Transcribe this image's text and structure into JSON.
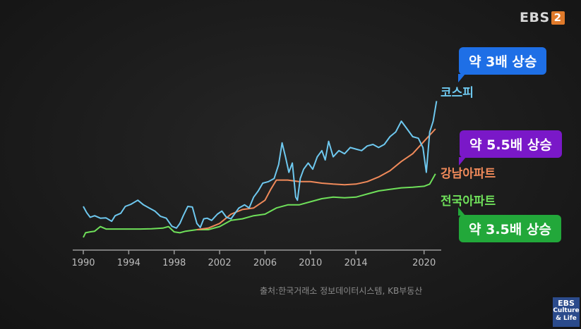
{
  "broadcaster": {
    "logo_text": "EBS",
    "logo_num": "2"
  },
  "corner_badge": {
    "line1": "EBS",
    "line2": "Culture",
    "line3": "& Life"
  },
  "source_text": "출처:한국거래소 정보데이터시스템, KB부동산",
  "callouts": {
    "kospi": "약 3배 상승",
    "gangnam": "약 5.5배 상승",
    "national": "약 3.5배 상승"
  },
  "colors": {
    "kospi": "#6ec8ef",
    "gangnam": "#f08a5a",
    "national": "#6fe05a",
    "axis": "#9a9a9a",
    "tick_text": "#bdbdbd"
  },
  "chart_data": {
    "type": "line",
    "title": "",
    "xlabel": "",
    "ylabel": "",
    "xlim": [
      1990,
      2021.2
    ],
    "ylim": [
      0,
      5.5
    ],
    "x_ticks": [
      "1990",
      "1994",
      "1998",
      "2002",
      "2006",
      "2010",
      "2014",
      "2020"
    ],
    "x_tick_values": [
      1990,
      1994,
      1998,
      2002,
      2006,
      2010,
      2014,
      2020
    ],
    "grid": false,
    "series": [
      {
        "name": "코스피",
        "x": [
          1990.0,
          1990.3,
          1990.6,
          1991.0,
          1991.5,
          1992.0,
          1992.5,
          1992.8,
          1993.3,
          1993.7,
          1994.2,
          1994.8,
          1995.3,
          1995.8,
          1996.3,
          1996.8,
          1997.3,
          1997.8,
          1998.2,
          1998.5,
          1998.8,
          1999.2,
          1999.6,
          2000.0,
          2000.3,
          2000.6,
          2000.9,
          2001.3,
          2001.8,
          2002.2,
          2002.6,
          2003.0,
          2003.3,
          2003.7,
          2004.2,
          2004.6,
          2005.0,
          2005.4,
          2005.8,
          2006.3,
          2006.8,
          2007.2,
          2007.5,
          2007.8,
          2008.1,
          2008.4,
          2008.7,
          2008.85,
          2009.1,
          2009.4,
          2009.8,
          2010.2,
          2010.6,
          2011.0,
          2011.3,
          2011.6,
          2012.0,
          2012.5,
          2013.0,
          2013.5,
          2014.0,
          2014.5,
          2015.0,
          2015.5,
          2016.0,
          2016.5,
          2017.0,
          2017.5,
          2018.0,
          2018.5,
          2019.0,
          2019.5,
          2019.9,
          2020.2,
          2020.5,
          2020.8,
          2021.1
        ],
        "values": [
          1.0,
          0.8,
          0.65,
          0.7,
          0.62,
          0.63,
          0.52,
          0.7,
          0.78,
          1.0,
          1.07,
          1.2,
          1.05,
          0.95,
          0.85,
          0.68,
          0.62,
          0.36,
          0.3,
          0.45,
          0.7,
          1.0,
          0.98,
          0.45,
          0.32,
          0.6,
          0.62,
          0.55,
          0.75,
          0.85,
          0.65,
          0.6,
          0.75,
          0.95,
          1.05,
          0.95,
          1.3,
          1.5,
          1.75,
          1.8,
          1.9,
          2.35,
          3.05,
          2.6,
          2.1,
          2.4,
          1.3,
          1.2,
          1.9,
          2.2,
          2.4,
          2.2,
          2.6,
          2.8,
          2.5,
          3.1,
          2.6,
          2.8,
          2.7,
          2.9,
          2.85,
          2.8,
          2.95,
          3.0,
          2.9,
          3.0,
          3.25,
          3.4,
          3.75,
          3.5,
          3.25,
          3.2,
          2.9,
          2.1,
          3.4,
          3.75,
          4.4
        ]
      },
      {
        "name": "강남아파트",
        "x": [
          2000.0,
          2001.0,
          2002.0,
          2003.0,
          2004.0,
          2005.0,
          2006.0,
          2006.5,
          2007.0,
          2008.0,
          2009.0,
          2010.0,
          2011.0,
          2012.0,
          2013.0,
          2014.0,
          2015.0,
          2016.0,
          2017.0,
          2018.0,
          2019.0,
          2020.0,
          2021.0
        ],
        "values": [
          0.25,
          0.3,
          0.45,
          0.75,
          0.9,
          0.95,
          1.2,
          1.55,
          1.85,
          1.85,
          1.8,
          1.8,
          1.75,
          1.72,
          1.7,
          1.72,
          1.8,
          1.95,
          2.15,
          2.45,
          2.7,
          3.1,
          3.5
        ]
      },
      {
        "name": "전국아파트",
        "x": [
          1990.0,
          1990.2,
          1990.6,
          1991.0,
          1991.5,
          1992.0,
          1993.0,
          1994.0,
          1995.0,
          1996.0,
          1997.0,
          1997.5,
          1998.0,
          1998.5,
          1999.0,
          2000.0,
          2001.0,
          2002.0,
          2003.0,
          2004.0,
          2005.0,
          2006.0,
          2007.0,
          2008.0,
          2009.0,
          2010.0,
          2011.0,
          2012.0,
          2013.0,
          2014.0,
          2015.0,
          2016.0,
          2017.0,
          2018.0,
          2019.0,
          2020.0,
          2020.5,
          2021.0
        ],
        "values": [
          0.0,
          0.15,
          0.18,
          0.2,
          0.35,
          0.27,
          0.27,
          0.27,
          0.27,
          0.28,
          0.3,
          0.35,
          0.18,
          0.15,
          0.2,
          0.25,
          0.25,
          0.35,
          0.55,
          0.6,
          0.7,
          0.75,
          0.95,
          1.05,
          1.05,
          1.15,
          1.25,
          1.3,
          1.28,
          1.3,
          1.4,
          1.5,
          1.55,
          1.6,
          1.62,
          1.65,
          1.72,
          2.05
        ]
      }
    ]
  }
}
